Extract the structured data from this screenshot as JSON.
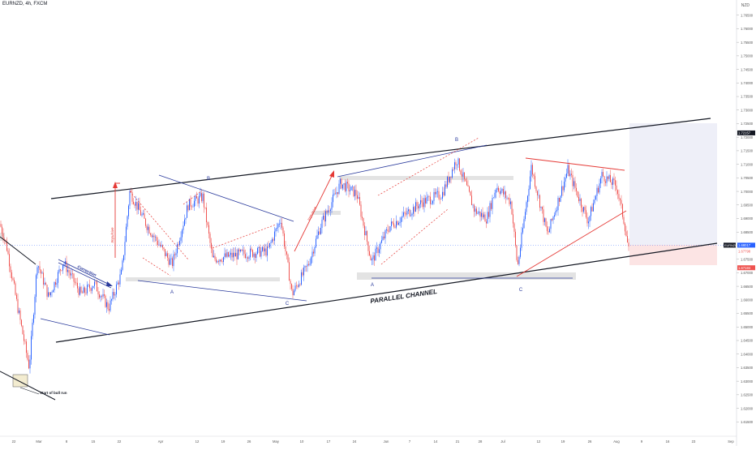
{
  "header": {
    "symbol": "EURNZD, 4h, FXCM",
    "currency": "NZD"
  },
  "chart_data": {
    "type": "candlestick",
    "title": "EURNZD, 4h, FXCM",
    "ylim": [
      1.61,
      1.77
    ],
    "grid": false,
    "y_ticks": [
      "1.76500",
      "1.76000",
      "1.75500",
      "1.75000",
      "1.74500",
      "1.74000",
      "1.73500",
      "1.73000",
      "1.72500",
      "1.72000",
      "1.71500",
      "1.71000",
      "1.70500",
      "1.70000",
      "1.69500",
      "1.69000",
      "1.68500",
      "1.68000",
      "1.67500",
      "1.67000",
      "1.66500",
      "1.66000",
      "1.65500",
      "1.65000",
      "1.64500",
      "1.64000",
      "1.63500",
      "1.63000",
      "1.62500",
      "1.62000",
      "1.61500"
    ],
    "x_ticks": [
      "22",
      "Mar",
      "8",
      "15",
      "22",
      "Apr",
      "12",
      "19",
      "26",
      "May",
      "10",
      "17",
      "24",
      "Jun",
      "7",
      "14",
      "21",
      "28",
      "Jul",
      "12",
      "19",
      "26",
      "Aug",
      "9",
      "16",
      "23",
      "Sep"
    ],
    "price_labels": {
      "current": {
        "symbol": "EURNZD",
        "value": "1.68017",
        "color": "#2962ff"
      },
      "sub": {
        "value": "1.67798",
        "color": "#ef5350"
      },
      "stop": {
        "value": "1.67184",
        "color": "#ef5350"
      },
      "target": {
        "value": "1.72157",
        "color": "#131722"
      }
    },
    "annotations": {
      "parallel_channel": "PARALLEL CHANNEL",
      "start_bull_run": "Start of bull run",
      "correction": "Correction",
      "impulsive_1": "Impulsive",
      "impulsive_2": "Impulsive",
      "wave_labels": [
        "B",
        "A",
        "C",
        "B",
        "A",
        "C"
      ]
    },
    "colors": {
      "up_candle": "#2962ff",
      "down_candle": "#ef5350",
      "trendline": "#131722",
      "wave_line": "#2a3a9c",
      "impulse_arrow": "#e53935",
      "target_zone": "#e8eaf6",
      "stop_zone": "#fce4e4",
      "support_zone": "#dcdcdc"
    },
    "waypoints": [
      [
        0,
        1.688
      ],
      [
        8,
        1.68
      ],
      [
        20,
        1.66
      ],
      [
        36,
        1.635
      ],
      [
        46,
        1.674
      ],
      [
        60,
        1.661
      ],
      [
        78,
        1.674
      ],
      [
        100,
        1.662
      ],
      [
        116,
        1.666
      ],
      [
        134,
        1.657
      ],
      [
        150,
        1.67
      ],
      [
        160,
        1.7
      ],
      [
        180,
        1.688
      ],
      [
        212,
        1.673
      ],
      [
        232,
        1.695
      ],
      [
        250,
        1.698
      ],
      [
        262,
        1.675
      ],
      [
        300,
        1.677
      ],
      [
        330,
        1.678
      ],
      [
        346,
        1.69
      ],
      [
        360,
        1.662
      ],
      [
        380,
        1.673
      ],
      [
        396,
        1.688
      ],
      [
        420,
        1.703
      ],
      [
        440,
        1.699
      ],
      [
        458,
        1.674
      ],
      [
        480,
        1.687
      ],
      [
        520,
        1.696
      ],
      [
        545,
        1.699
      ],
      [
        563,
        1.712
      ],
      [
        585,
        1.693
      ],
      [
        600,
        1.69
      ],
      [
        612,
        1.702
      ],
      [
        630,
        1.696
      ],
      [
        638,
        1.672
      ],
      [
        655,
        1.709
      ],
      [
        675,
        1.684
      ],
      [
        700,
        1.708
      ],
      [
        725,
        1.689
      ],
      [
        742,
        1.706
      ],
      [
        760,
        1.702
      ],
      [
        770,
        1.688
      ],
      [
        775,
        1.678
      ]
    ]
  }
}
